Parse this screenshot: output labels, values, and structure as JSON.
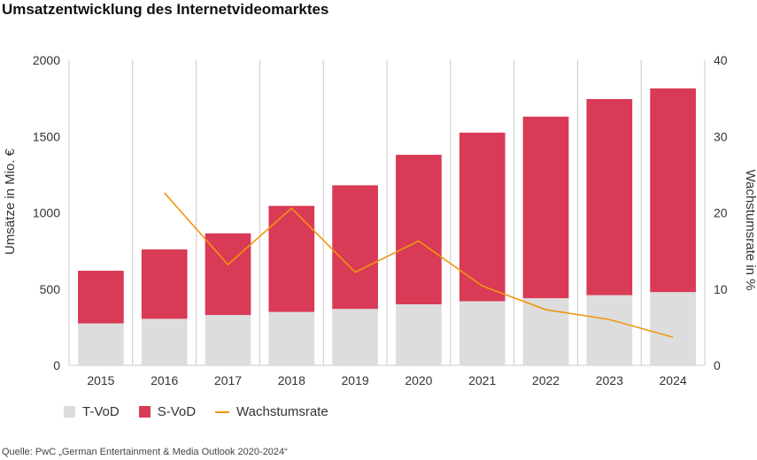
{
  "title": "Umsatzentwicklung des Internetvideomarktes",
  "source": "Quelle: PwC „German Entertainment & Media Outlook 2020-2024“",
  "legend": {
    "tvod": "T-VoD",
    "svod": "S-VoD",
    "growth": "Wachstumsrate"
  },
  "colors": {
    "tvod": "#dddddd",
    "svod": "#d93a56",
    "growth": "#f0960f",
    "grid": "#c8c8c8"
  },
  "chart_data": {
    "type": "bar",
    "stacked": true,
    "categories": [
      "2015",
      "2016",
      "2017",
      "2018",
      "2019",
      "2020",
      "2021",
      "2022",
      "2023",
      "2024"
    ],
    "series": [
      {
        "name": "T-VoD",
        "values": [
          275,
          305,
          330,
          350,
          370,
          400,
          420,
          440,
          460,
          480
        ]
      },
      {
        "name": "S-VoD",
        "values": [
          345,
          455,
          535,
          695,
          810,
          980,
          1105,
          1190,
          1285,
          1335
        ]
      }
    ],
    "line_series": {
      "name": "Wachstumsrate",
      "axis": "right",
      "values": [
        null,
        22.6,
        13.2,
        20.6,
        12.2,
        16.3,
        10.4,
        7.3,
        6.0,
        3.7
      ]
    },
    "ylabel": "Umsätze in Mio. €",
    "y2label": "Wachstumsrate in %",
    "ylim": [
      0,
      2000
    ],
    "y2lim": [
      0,
      40
    ],
    "yticks": [
      0,
      500,
      1000,
      1500,
      2000
    ],
    "y2ticks": [
      0,
      10,
      20,
      30,
      40
    ],
    "grid": "vertical",
    "legend_position": "bottom-left"
  }
}
